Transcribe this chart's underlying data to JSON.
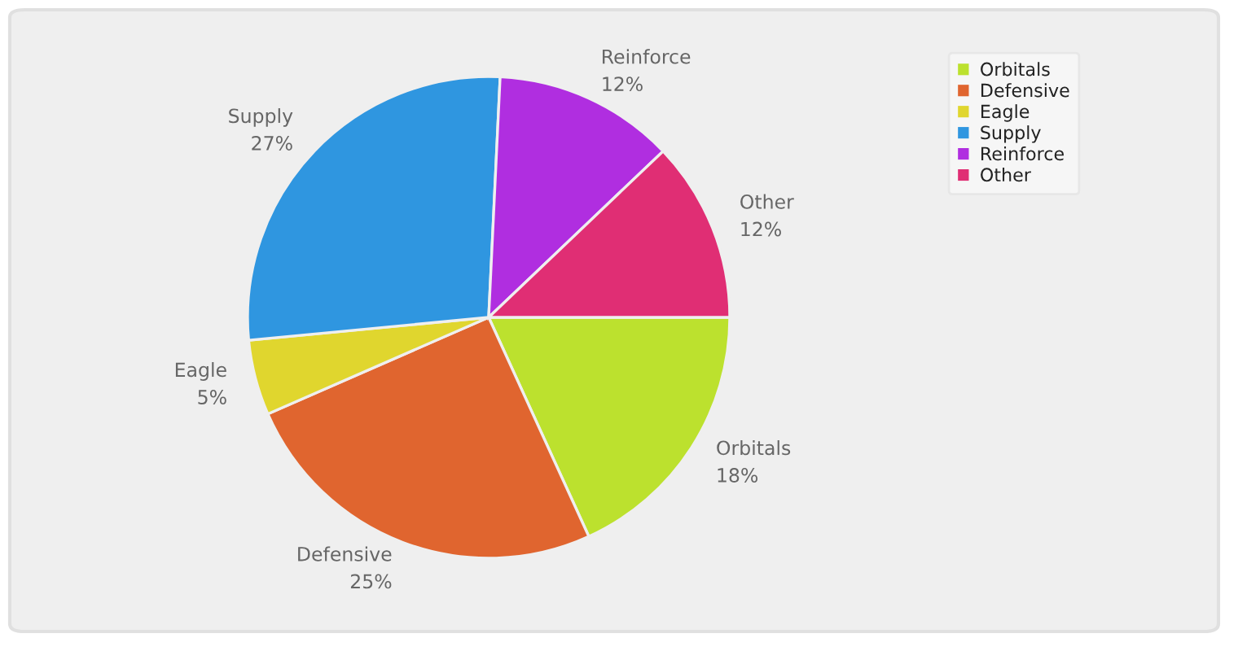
{
  "chart_data": {
    "type": "pie",
    "categories": [
      "Orbitals",
      "Defensive",
      "Eagle",
      "Supply",
      "Reinforce",
      "Other"
    ],
    "values": [
      18,
      25,
      5,
      27,
      12,
      12
    ],
    "value_labels": [
      "18%",
      "25%",
      "5%",
      "27%",
      "12%",
      "12%"
    ],
    "colors": [
      "#bce12e",
      "#e0652f",
      "#e0d62e",
      "#2f96e0",
      "#b02ee0",
      "#e02e74"
    ],
    "legend": "top right"
  }
}
